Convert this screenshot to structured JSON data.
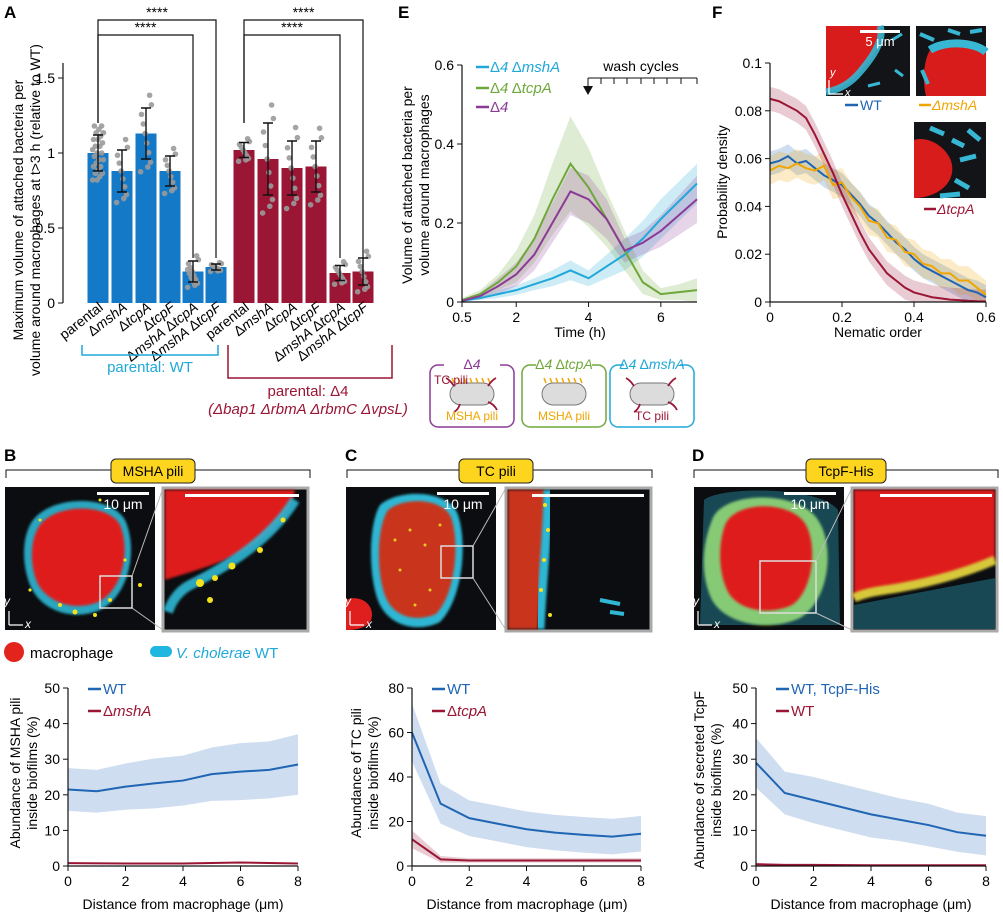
{
  "panels": {
    "A": {
      "label": "A",
      "ylabel_line1": "Maximum volume of attached bacteria per",
      "ylabel_line2": "volume around macrophages at t>3 h (relative to WT)",
      "sig": "****",
      "group_wt": "parental: WT",
      "group_d4_line1": "parental: Δ4",
      "group_d4_line2": "(Δbap1 ΔrbmA ΔrbmC ΔvpsL)",
      "colors": {
        "wt": "#1479c6",
        "d4": "#9b1535"
      }
    },
    "B": {
      "label": "B",
      "title": "MSHA pili",
      "scale": "10 μm",
      "legend_macrophage": "macrophage",
      "legend_bacteria_italic": "V. cholerae",
      "legend_bacteria_rest": " WT"
    },
    "C": {
      "label": "C",
      "title": "TC pili",
      "scale": "10 μm"
    },
    "D": {
      "label": "D",
      "title": "TcpF-His",
      "scale": "10 μm"
    },
    "E": {
      "label": "E",
      "ylabel_line1": "Volume of attached bacteria per",
      "ylabel_line2": "volume around macrophages",
      "xlabel": "Time (h)",
      "wash": "wash cycles",
      "boxes": [
        {
          "title": "Δ4",
          "top": "TC pili",
          "bottom": "MSHA pili",
          "color": "#8b3a96"
        },
        {
          "title": "Δ4 ΔtcpA",
          "top": "",
          "bottom": "MSHA pili",
          "color": "#6fa83a"
        },
        {
          "title": "Δ4 ΔmshA",
          "top": "",
          "bottom": "TC pili",
          "color": "#1fa8d8"
        }
      ]
    },
    "F": {
      "label": "F",
      "ylabel": "Probability density",
      "xlabel": "Nematic order",
      "scale": "5 μm",
      "img_wt": "WT",
      "img_mshA": "ΔmshA",
      "img_tcpA": "ΔtcpA"
    }
  },
  "chart_data": [
    {
      "id": "A",
      "type": "bar",
      "title": "",
      "ylabel": "Maximum volume of attached bacteria per volume around macrophages at t>3 h (relative to WT)",
      "ylim": [
        0,
        1.6
      ],
      "yticks": [
        0,
        0.5,
        1,
        1.5
      ],
      "categories": [
        "parental",
        "ΔmshA",
        "ΔtcpA",
        "ΔtcpF",
        "ΔmshA ΔtcpA",
        "ΔmshA ΔtcpF",
        "parental",
        "ΔmshA",
        "ΔtcpA",
        "ΔtcpF",
        "ΔmshA ΔtcpA",
        "ΔmshA ΔtcpF"
      ],
      "group": [
        "WT",
        "WT",
        "WT",
        "WT",
        "WT",
        "WT",
        "Δ4",
        "Δ4",
        "Δ4",
        "Δ4",
        "Δ4",
        "Δ4"
      ],
      "values": [
        1.0,
        0.88,
        1.13,
        0.88,
        0.21,
        0.24,
        1.02,
        0.96,
        0.9,
        0.91,
        0.2,
        0.21
      ],
      "errors": [
        0.12,
        0.14,
        0.17,
        0.1,
        0.07,
        0.02,
        0.05,
        0.24,
        0.18,
        0.17,
        0.05,
        0.09
      ],
      "significance": [
        {
          "pair": [
            "parental",
            "ΔmshA ΔtcpA"
          ],
          "group": "WT",
          "label": "****"
        },
        {
          "pair": [
            "parental",
            "ΔmshA ΔtcpF"
          ],
          "group": "WT",
          "label": "****"
        },
        {
          "pair": [
            "parental",
            "ΔmshA ΔtcpA"
          ],
          "group": "Δ4",
          "label": "****"
        },
        {
          "pair": [
            "parental",
            "ΔmshA ΔtcpF"
          ],
          "group": "Δ4",
          "label": "****"
        }
      ]
    },
    {
      "id": "E",
      "type": "line",
      "xlabel": "Time (h)",
      "ylabel": "Volume of attached bacteria per volume around macrophages",
      "xlim": [
        0.5,
        7
      ],
      "ylim": [
        0,
        0.6
      ],
      "xticks": [
        0.5,
        2,
        4,
        6
      ],
      "yticks": [
        0,
        0.2,
        0.4,
        0.6
      ],
      "series": [
        {
          "name": "Δ4 ΔmshA",
          "color": "#1fa8d8",
          "x": [
            0.5,
            1,
            1.5,
            2,
            2.5,
            3,
            3.5,
            4,
            4.5,
            5,
            5.5,
            6,
            6.5,
            7
          ],
          "y": [
            0.003,
            0.01,
            0.02,
            0.03,
            0.045,
            0.06,
            0.08,
            0.06,
            0.09,
            0.12,
            0.16,
            0.21,
            0.255,
            0.3
          ],
          "band": [
            0.002,
            0.005,
            0.01,
            0.012,
            0.015,
            0.02,
            0.025,
            0.02,
            0.03,
            0.04,
            0.045,
            0.05,
            0.05,
            0.05
          ]
        },
        {
          "name": "Δ4 ΔtcpA",
          "color": "#6fa83a",
          "x": [
            0.5,
            1,
            1.5,
            2,
            2.5,
            3,
            3.5,
            4,
            4.5,
            5,
            5.5,
            6,
            6.5,
            7
          ],
          "y": [
            0.005,
            0.02,
            0.05,
            0.09,
            0.16,
            0.26,
            0.35,
            0.29,
            0.21,
            0.13,
            0.05,
            0.02,
            0.025,
            0.03
          ],
          "band": [
            0.005,
            0.01,
            0.02,
            0.04,
            0.06,
            0.09,
            0.12,
            0.1,
            0.07,
            0.05,
            0.03,
            0.015,
            0.02,
            0.03
          ]
        },
        {
          "name": "Δ4",
          "color": "#8b3a96",
          "x": [
            0.5,
            1,
            1.5,
            2,
            2.5,
            3,
            3.5,
            4,
            4.5,
            5,
            5.5,
            6,
            6.5,
            7
          ],
          "y": [
            0.003,
            0.015,
            0.04,
            0.07,
            0.12,
            0.2,
            0.28,
            0.26,
            0.21,
            0.13,
            0.15,
            0.18,
            0.22,
            0.26
          ],
          "band": [
            0.003,
            0.008,
            0.02,
            0.03,
            0.04,
            0.05,
            0.06,
            0.06,
            0.05,
            0.03,
            0.03,
            0.04,
            0.05,
            0.06
          ]
        }
      ],
      "annotations": [
        {
          "text": "wash cycles",
          "x_start": 4,
          "x_end": 7
        }
      ]
    },
    {
      "id": "F",
      "type": "line",
      "xlabel": "Nematic order",
      "ylabel": "Probability density",
      "xlim": [
        0,
        0.6
      ],
      "ylim": [
        0,
        0.1
      ],
      "xticks": [
        0,
        0.2,
        0.4,
        0.6
      ],
      "yticks": [
        0,
        0.02,
        0.04,
        0.06,
        0.08,
        0.1
      ],
      "series": [
        {
          "name": "WT",
          "color": "#1f65b4",
          "x": [
            0,
            0.025,
            0.05,
            0.075,
            0.1,
            0.125,
            0.15,
            0.175,
            0.2,
            0.225,
            0.25,
            0.275,
            0.3,
            0.325,
            0.35,
            0.375,
            0.4,
            0.425,
            0.45,
            0.475,
            0.5,
            0.525,
            0.55,
            0.575,
            0.6
          ],
          "y": [
            0.058,
            0.059,
            0.061,
            0.058,
            0.059,
            0.056,
            0.053,
            0.051,
            0.049,
            0.045,
            0.041,
            0.036,
            0.033,
            0.029,
            0.025,
            0.022,
            0.018,
            0.015,
            0.013,
            0.011,
            0.009,
            0.007,
            0.005,
            0.004,
            0.002
          ],
          "band": 0.005
        },
        {
          "name": "ΔmshA",
          "color": "#f0a500",
          "x": [
            0,
            0.025,
            0.05,
            0.075,
            0.1,
            0.125,
            0.15,
            0.175,
            0.2,
            0.225,
            0.25,
            0.275,
            0.3,
            0.325,
            0.35,
            0.375,
            0.4,
            0.425,
            0.45,
            0.475,
            0.5,
            0.525,
            0.55,
            0.575,
            0.6
          ],
          "y": [
            0.055,
            0.057,
            0.056,
            0.058,
            0.056,
            0.055,
            0.057,
            0.049,
            0.05,
            0.044,
            0.04,
            0.034,
            0.033,
            0.027,
            0.026,
            0.021,
            0.02,
            0.016,
            0.015,
            0.012,
            0.012,
            0.009,
            0.009,
            0.006,
            0.003
          ],
          "band": 0.006
        },
        {
          "name": "ΔtcpA",
          "color": "#9b1535",
          "x": [
            0,
            0.025,
            0.05,
            0.075,
            0.1,
            0.125,
            0.15,
            0.175,
            0.2,
            0.225,
            0.25,
            0.275,
            0.3,
            0.325,
            0.35,
            0.375,
            0.4,
            0.425,
            0.45,
            0.475,
            0.5,
            0.525,
            0.55,
            0.575,
            0.6
          ],
          "y": [
            0.085,
            0.084,
            0.082,
            0.08,
            0.077,
            0.07,
            0.062,
            0.054,
            0.045,
            0.037,
            0.029,
            0.022,
            0.017,
            0.012,
            0.009,
            0.006,
            0.004,
            0.003,
            0.002,
            0.0015,
            0.001,
            0.0008,
            0.0005,
            0.0003,
            0.0002
          ],
          "band": 0.005
        }
      ]
    },
    {
      "id": "B",
      "type": "line",
      "xlabel": "Distance from macrophage (μm)",
      "ylabel": "Abundance of MSHA pili inside biofilms (%)",
      "xlim": [
        0,
        8
      ],
      "ylim": [
        0,
        50
      ],
      "xticks": [
        0,
        2,
        4,
        6,
        8
      ],
      "yticks": [
        0,
        10,
        20,
        30,
        40,
        50
      ],
      "series": [
        {
          "name": "WT",
          "color": "#1f65b4",
          "x": [
            0,
            1,
            2,
            3,
            4,
            5,
            6,
            7,
            8
          ],
          "y": [
            21.5,
            21,
            22.3,
            23.2,
            24,
            25.8,
            26.5,
            27,
            28.5
          ],
          "band": [
            6,
            6,
            6.5,
            7,
            7,
            7.5,
            8,
            8,
            8.5
          ]
        },
        {
          "name": "ΔmshA",
          "color": "#9b1535",
          "x": [
            0,
            2,
            4,
            6,
            8
          ],
          "y": [
            0.8,
            0.7,
            0.7,
            1.0,
            0.7
          ],
          "band": [
            0.2,
            0.2,
            0.2,
            0.2,
            0.2
          ]
        }
      ]
    },
    {
      "id": "C",
      "type": "line",
      "xlabel": "Distance from macrophage (μm)",
      "ylabel": "Abundance of TC pili inside biofilms (%)",
      "xlim": [
        0,
        8
      ],
      "ylim": [
        0,
        80
      ],
      "xticks": [
        0,
        2,
        4,
        6,
        8
      ],
      "yticks": [
        0,
        20,
        40,
        60,
        80
      ],
      "series": [
        {
          "name": "WT",
          "color": "#1f65b4",
          "x": [
            0,
            1,
            2,
            3,
            4,
            5,
            6,
            7,
            8
          ],
          "y": [
            60,
            28,
            21.5,
            19,
            16.5,
            15,
            14,
            13.2,
            14.5
          ],
          "band": [
            13,
            9,
            8,
            8,
            8,
            8,
            8,
            8,
            8
          ]
        },
        {
          "name": "ΔtcpA",
          "color": "#9b1535",
          "x": [
            0,
            1,
            2,
            3,
            4,
            5,
            6,
            7,
            8
          ],
          "y": [
            12,
            3,
            2.5,
            2.5,
            2.5,
            2.5,
            2.5,
            2.5,
            2.5
          ],
          "band": [
            4,
            1.5,
            1,
            1,
            1,
            1,
            1,
            1,
            1
          ]
        }
      ]
    },
    {
      "id": "D",
      "type": "line",
      "xlabel": "Distance from macrophage (μm)",
      "ylabel": "Abundance of secreted TcpF inside biofilms (%)",
      "xlim": [
        0,
        8
      ],
      "ylim": [
        0,
        50
      ],
      "xticks": [
        0,
        2,
        4,
        6,
        8
      ],
      "yticks": [
        0,
        10,
        20,
        30,
        40,
        50
      ],
      "series": [
        {
          "name": "WT, TcpF-His",
          "color": "#1f65b4",
          "x": [
            0,
            1,
            2,
            3,
            4,
            5,
            6,
            7,
            8
          ],
          "y": [
            29,
            20.5,
            18.5,
            16.5,
            14.5,
            13,
            11.5,
            9.5,
            8.5
          ],
          "band": [
            7,
            6,
            6.5,
            6.5,
            6.5,
            6,
            6,
            5.5,
            5.5
          ]
        },
        {
          "name": "WT",
          "color": "#9b1535",
          "x": [
            0,
            1,
            2,
            4,
            6,
            8
          ],
          "y": [
            0.5,
            0.3,
            0.3,
            0.2,
            0.2,
            0.2
          ],
          "band": [
            0.4,
            0.2,
            0.2,
            0.2,
            0.2,
            0.2
          ]
        }
      ]
    }
  ]
}
